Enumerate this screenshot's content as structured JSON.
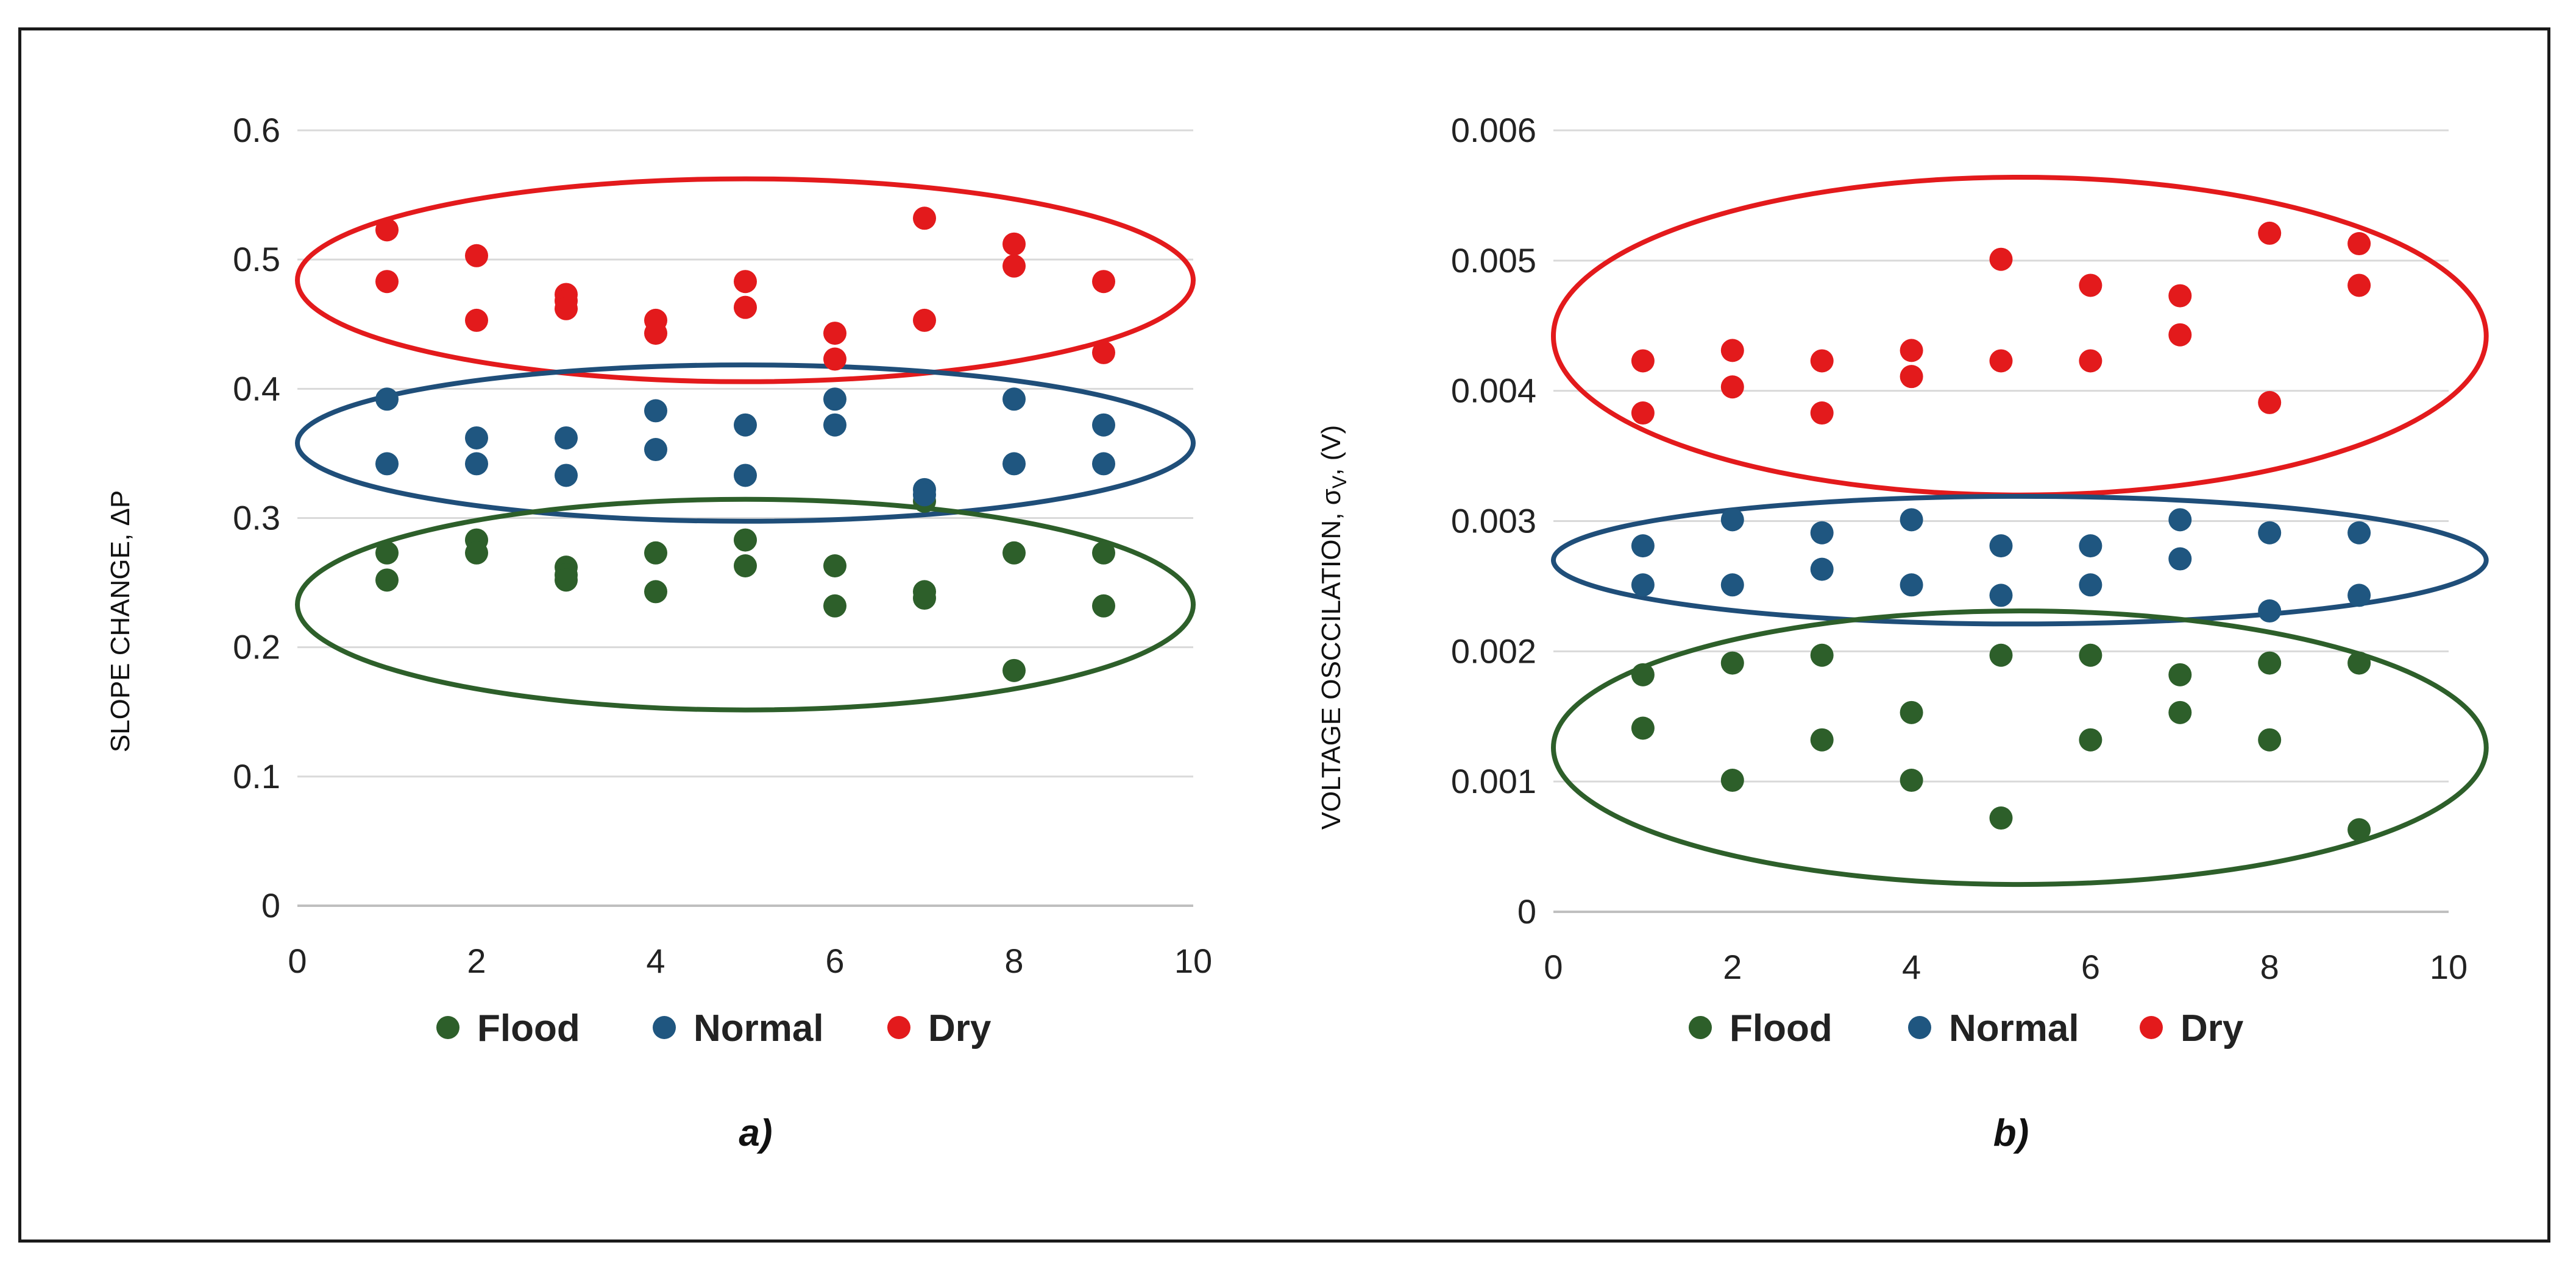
{
  "colors": {
    "flood": "#2d5f2a",
    "normal": "#1f5680",
    "dry": "#e31a1c",
    "grid": "#d9d9d9",
    "axis": "#bfbfbf",
    "ellipse_normal": "#1f4e79",
    "ellipse_flood": "#2d5f2a",
    "ellipse_dry": "#e31a1c"
  },
  "chart_data": [
    {
      "type": "scatter",
      "caption": "a)",
      "ylabel": "SLOPE CHANGE, ΔP",
      "xlim": [
        0,
        10
      ],
      "ylim": [
        0,
        0.6
      ],
      "xticks": [
        "0",
        "2",
        "4",
        "6",
        "8",
        "10"
      ],
      "yticks": [
        "0",
        "0.1",
        "0.2",
        "0.3",
        "0.4",
        "0.5",
        "0.6"
      ],
      "grid": true,
      "legend_position": "bottom",
      "series": [
        {
          "name": "Flood",
          "color": "#2d5f2a",
          "x": [
            1,
            1,
            2,
            2,
            3,
            3,
            3,
            4,
            4,
            5,
            5,
            6,
            6,
            7,
            7,
            7,
            8,
            8,
            9,
            9
          ],
          "y": [
            0.273,
            0.252,
            0.283,
            0.273,
            0.262,
            0.256,
            0.252,
            0.273,
            0.243,
            0.283,
            0.263,
            0.263,
            0.232,
            0.243,
            0.238,
            0.313,
            0.273,
            0.182,
            0.273,
            0.232
          ]
        },
        {
          "name": "Normal",
          "color": "#1f5680",
          "x": [
            1,
            1,
            2,
            2,
            3,
            3,
            4,
            4,
            5,
            5,
            6,
            6,
            7,
            7,
            8,
            8,
            9,
            9
          ],
          "y": [
            0.392,
            0.342,
            0.362,
            0.342,
            0.362,
            0.333,
            0.383,
            0.353,
            0.372,
            0.333,
            0.392,
            0.372,
            0.322,
            0.318,
            0.392,
            0.342,
            0.372,
            0.342
          ]
        },
        {
          "name": "Dry",
          "color": "#e31a1c",
          "x": [
            1,
            1,
            2,
            2,
            3,
            3,
            3,
            4,
            4,
            5,
            5,
            6,
            6,
            7,
            7,
            8,
            8,
            9,
            9
          ],
          "y": [
            0.523,
            0.483,
            0.503,
            0.453,
            0.473,
            0.468,
            0.462,
            0.453,
            0.443,
            0.483,
            0.463,
            0.443,
            0.423,
            0.532,
            0.453,
            0.512,
            0.495,
            0.483,
            0.428
          ]
        }
      ],
      "ellipses": [
        {
          "series": "Dry",
          "cx": 5.0,
          "cy": 0.484,
          "rx": 5.0,
          "ry": 0.0785
        },
        {
          "series": "Normal",
          "cx": 5.0,
          "cy": 0.358,
          "rx": 5.0,
          "ry": 0.0605
        },
        {
          "series": "Flood",
          "cx": 5.0,
          "cy": 0.233,
          "rx": 5.0,
          "ry": 0.0815
        }
      ]
    },
    {
      "type": "scatter",
      "caption": "b)",
      "ylabel": "VOLTAGE OSCCILATION, σ",
      "ylabel_sub": "V",
      "ylabel_end": ", (V)",
      "xlim": [
        0,
        10
      ],
      "ylim": [
        0,
        0.006
      ],
      "xticks": [
        "0",
        "2",
        "4",
        "6",
        "8",
        "10"
      ],
      "yticks": [
        "0",
        "0.001",
        "0.002",
        "0.003",
        "0.004",
        "0.005",
        "0.006"
      ],
      "grid": true,
      "legend_position": "bottom",
      "series": [
        {
          "name": "Flood",
          "color": "#2d5f2a",
          "x": [
            1,
            1,
            2,
            2,
            3,
            3,
            4,
            4,
            5,
            5,
            6,
            6,
            7,
            7,
            8,
            8,
            9,
            9
          ],
          "y": [
            0.00182,
            0.00141,
            0.00191,
            0.00101,
            0.00197,
            0.00132,
            0.00153,
            0.00101,
            0.00197,
            0.00072,
            0.00197,
            0.00132,
            0.00182,
            0.00153,
            0.00191,
            0.00132,
            0.00191,
            0.00063
          ]
        },
        {
          "name": "Normal",
          "color": "#1f5680",
          "x": [
            1,
            1,
            2,
            2,
            3,
            3,
            4,
            4,
            5,
            5,
            6,
            6,
            7,
            7,
            8,
            8,
            9,
            9
          ],
          "y": [
            0.00281,
            0.00251,
            0.00301,
            0.00251,
            0.00291,
            0.00263,
            0.00301,
            0.00251,
            0.00281,
            0.00243,
            0.00281,
            0.00251,
            0.00301,
            0.00271,
            0.00291,
            0.00231,
            0.00291,
            0.00243
          ]
        },
        {
          "name": "Dry",
          "color": "#e31a1c",
          "x": [
            1,
            1,
            2,
            2,
            3,
            3,
            4,
            4,
            5,
            5,
            6,
            6,
            7,
            7,
            8,
            8,
            9,
            9
          ],
          "y": [
            0.00423,
            0.00383,
            0.00431,
            0.00403,
            0.00423,
            0.00383,
            0.00431,
            0.00411,
            0.00501,
            0.00423,
            0.00481,
            0.00423,
            0.00473,
            0.00443,
            0.00521,
            0.00391,
            0.00513,
            0.00481
          ]
        }
      ],
      "ellipses": [
        {
          "series": "Dry",
          "cx": 5.21,
          "cy": 0.00442,
          "rx": 5.21,
          "ry": 0.00122
        },
        {
          "series": "Normal",
          "cx": 5.21,
          "cy": 0.0027,
          "rx": 5.21,
          "ry": 0.00049
        },
        {
          "series": "Flood",
          "cx": 5.21,
          "cy": 0.00126,
          "rx": 5.21,
          "ry": 0.00105
        }
      ]
    }
  ]
}
